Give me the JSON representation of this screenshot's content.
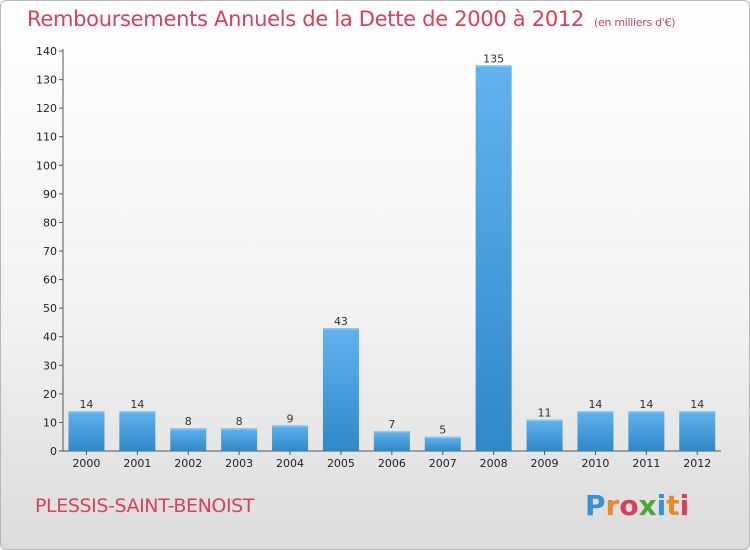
{
  "header": {
    "title": "Remboursements Annuels de la Dette de 2000 à 2012",
    "unit_note": "(en milliers d'€)"
  },
  "footer": {
    "city": "PLESSIS-SAINT-BENOIST",
    "brand": "Proxiti",
    "brand_colors": [
      "#3a8fd6",
      "#e8892a",
      "#d9405a",
      "#4aa83e",
      "#3a8fd6",
      "#e8892a",
      "#d9405a"
    ]
  },
  "colors": {
    "title": "#d9405a",
    "bar_light": "#62b3ee",
    "bar_dark": "#2f88c8"
  },
  "chart_data": {
    "type": "bar",
    "categories": [
      "2000",
      "2001",
      "2002",
      "2003",
      "2004",
      "2005",
      "2006",
      "2007",
      "2008",
      "2009",
      "2010",
      "2011",
      "2012"
    ],
    "values": [
      14,
      14,
      8,
      8,
      9,
      43,
      7,
      5,
      135,
      11,
      14,
      14,
      14
    ],
    "data_labels": [
      "14",
      "14",
      "8",
      "8",
      "9",
      "43",
      "7",
      "5",
      "135",
      "11",
      "14",
      "14",
      "14"
    ],
    "ylim": [
      0,
      140
    ],
    "yticks": [
      0,
      10,
      20,
      30,
      40,
      50,
      60,
      70,
      80,
      90,
      100,
      110,
      120,
      130,
      140
    ],
    "grid": false,
    "legend": "none"
  }
}
